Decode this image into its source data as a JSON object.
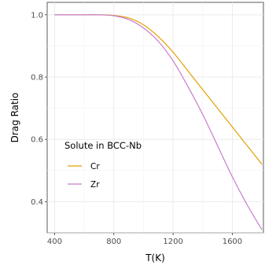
{
  "chart_data": {
    "type": "line",
    "title": "",
    "xlabel": "T(K)",
    "ylabel": "Drag Ratio",
    "xlim": [
      350,
      1810
    ],
    "ylim": [
      0.3,
      1.04
    ],
    "x_ticks": [
      400,
      800,
      1200,
      1600
    ],
    "x_tick_labels": [
      "400",
      "800",
      "1200",
      "1600"
    ],
    "y_ticks": [
      0.4,
      0.6,
      0.8,
      1.0
    ],
    "y_tick_labels": [
      "0.4",
      "0.6",
      "0.8",
      "1.0"
    ],
    "grid": true,
    "legend": {
      "title": "Solute in BCC-Nb",
      "position": "bottom-left"
    },
    "series": [
      {
        "name": "Cr",
        "color": "#E69F00",
        "x": [
          400,
          600,
          700,
          800,
          900,
          1000,
          1100,
          1200,
          1300,
          1400,
          1500,
          1600,
          1700,
          1800
        ],
        "y": [
          1.0,
          1.0,
          1.0,
          0.998,
          0.99,
          0.968,
          0.93,
          0.88,
          0.82,
          0.76,
          0.7,
          0.64,
          0.58,
          0.52
        ]
      },
      {
        "name": "Zr",
        "color": "#C77CCB",
        "x": [
          400,
          600,
          700,
          800,
          900,
          1000,
          1100,
          1200,
          1300,
          1400,
          1500,
          1600,
          1700,
          1800
        ],
        "y": [
          1.0,
          1.0,
          1.0,
          0.997,
          0.985,
          0.958,
          0.915,
          0.852,
          0.77,
          0.68,
          0.58,
          0.48,
          0.39,
          0.31
        ]
      }
    ]
  }
}
